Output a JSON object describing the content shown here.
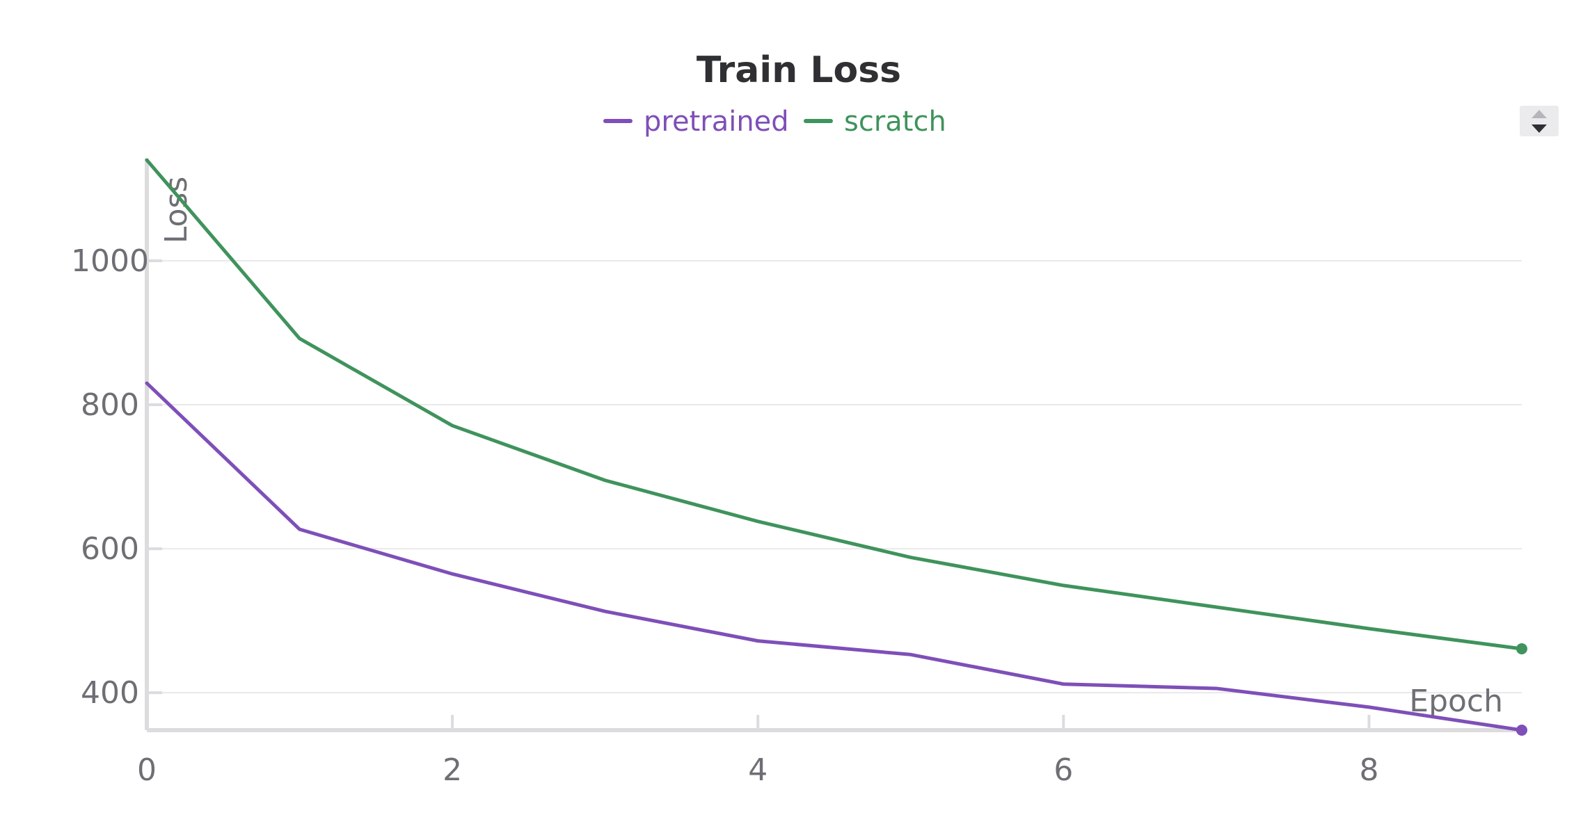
{
  "chart_data": {
    "type": "line",
    "title": "Train Loss",
    "xlabel": "Epoch",
    "ylabel": "Loss",
    "x": [
      0,
      1,
      2,
      3,
      4,
      5,
      6,
      7,
      8,
      9
    ],
    "x_ticks": [
      "0",
      "2",
      "4",
      "6",
      "8"
    ],
    "y_ticks": [
      "400",
      "600",
      "800",
      "1000"
    ],
    "xlim": [
      0,
      9
    ],
    "ylim": [
      348,
      1142
    ],
    "grid": true,
    "legend_position": "top-center",
    "series": [
      {
        "name": "pretrained",
        "color": "#7e4fb8",
        "values": [
          830,
          627,
          565,
          513,
          472,
          453,
          412,
          406,
          380,
          348
        ]
      },
      {
        "name": "scratch",
        "color": "#3f935c",
        "values": [
          1140,
          892,
          771,
          695,
          638,
          588,
          549,
          519,
          489,
          461
        ]
      }
    ]
  },
  "legend_scroll_icon": "up-down-arrows-icon"
}
